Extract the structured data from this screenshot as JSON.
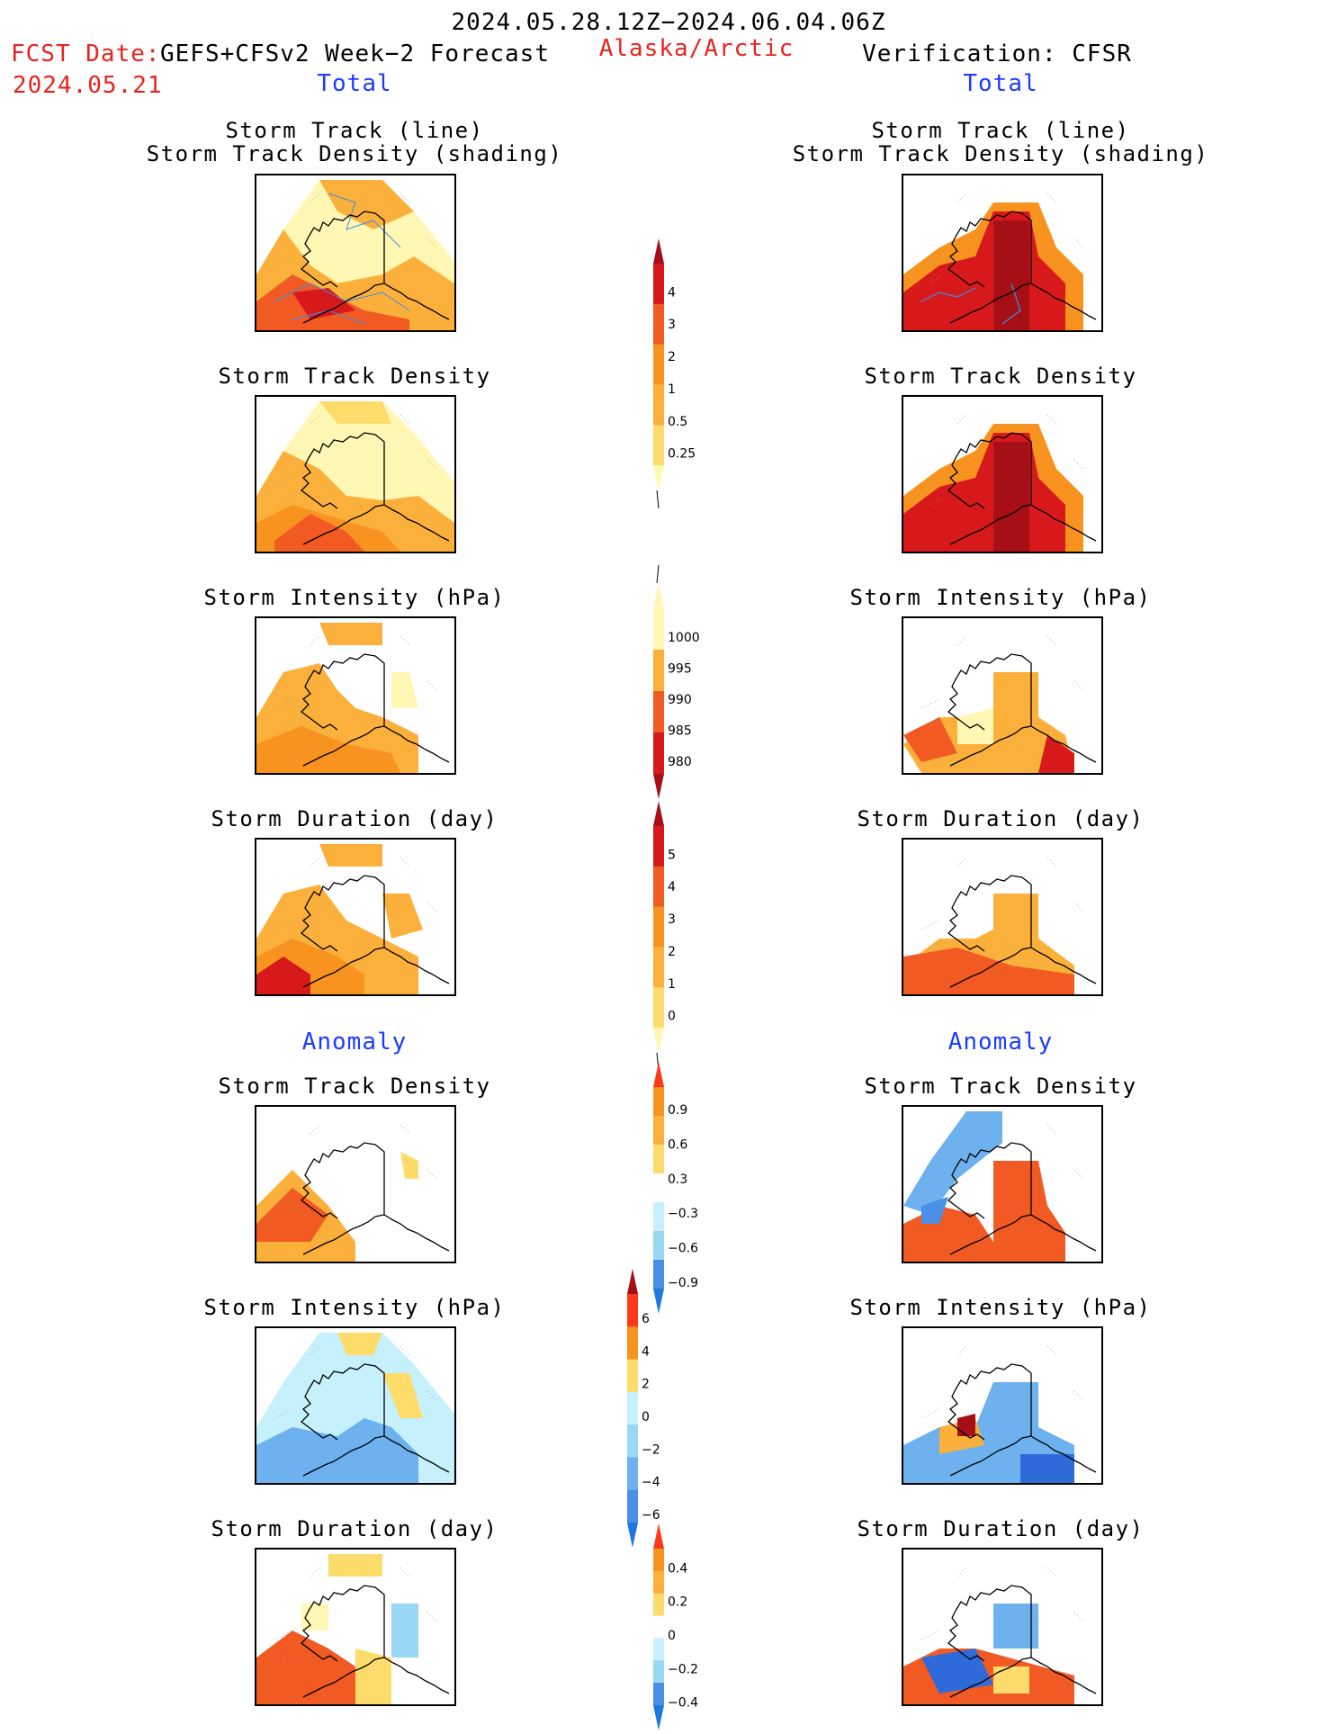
{
  "header": {
    "period": "2024.05.28.12Z−2024.06.04.06Z",
    "fcst_label": "FCST Date:",
    "fcst_model": "GEFS+CFSv2 Week−2 Forecast",
    "fcst_date": "2024.05.21",
    "region": "Alaska/Arctic",
    "verification": "Verification: CFSR",
    "left_total": "Total",
    "right_total": "Total",
    "left_anomaly": "Anomaly",
    "right_anomaly": "Anomaly"
  },
  "panels": {
    "track_line": "Storm Track (line)",
    "track_shading": "Storm Track Density (shading)",
    "track_density": "Storm Track Density",
    "intensity": "Storm Intensity (hPa)",
    "duration": "Storm Duration (day)"
  },
  "colorbars": {
    "density_total": [
      "4",
      "3",
      "2",
      "1",
      "0.5",
      "0.25"
    ],
    "intensity_total": [
      "1000",
      "995",
      "990",
      "985",
      "980"
    ],
    "duration_total": [
      "5",
      "4",
      "3",
      "2",
      "1",
      "0"
    ],
    "density_anom": [
      "0.9",
      "0.6",
      "0.3",
      "−0.3",
      "−0.6",
      "−0.9"
    ],
    "intensity_anom": [
      "6",
      "4",
      "2",
      "0",
      "−2",
      "−4",
      "−6"
    ],
    "duration_anom": [
      "0.4",
      "0.2",
      "0",
      "−0.2",
      "−0.4"
    ]
  },
  "colors": {
    "warm": [
      "#fff7b3",
      "#fddc6c",
      "#fbb03b",
      "#f7931e",
      "#f15a22",
      "#d7191c",
      "#a50f15"
    ],
    "cool": [
      "#c6f0fb",
      "#9ad7f5",
      "#6db2ee",
      "#4a8fe7",
      "#2f6ad9"
    ],
    "header_red": "#e8231e",
    "header_blue": "#1a3cff"
  }
}
